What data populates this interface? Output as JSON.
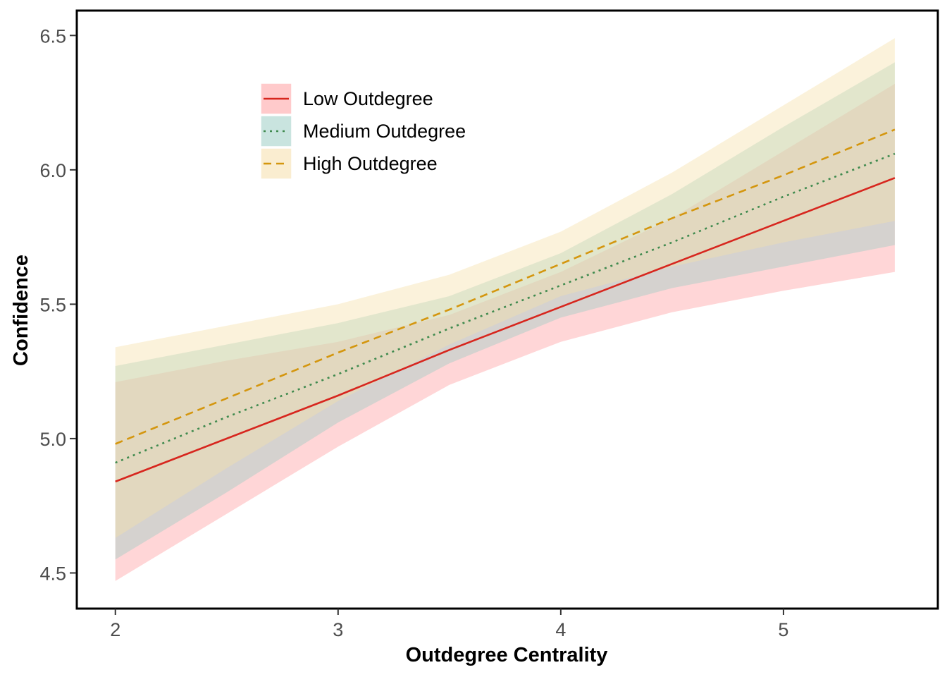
{
  "chart_data": {
    "type": "line",
    "title": "",
    "xlabel": "Outdegree Centrality",
    "ylabel": "Confidence",
    "xlim": [
      1.83,
      5.69
    ],
    "ylim": [
      4.37,
      6.59
    ],
    "x_ticks": [
      2,
      3,
      4,
      5
    ],
    "x_tick_labels": [
      "2",
      "3",
      "4",
      "5"
    ],
    "y_ticks": [
      4.5,
      5.0,
      5.5,
      6.0,
      6.5
    ],
    "y_tick_labels": [
      "4.5",
      "5.0",
      "5.5",
      "6.0",
      "6.5"
    ],
    "grid": false,
    "legend_position": "top-left",
    "series": [
      {
        "name": "Low Outdegree",
        "line_color": "#d7261e",
        "band_color": "#ff9ea0",
        "line_style": "solid",
        "x": [
          2,
          2.5,
          3,
          3.5,
          4,
          4.5,
          5,
          5.5
        ],
        "y": [
          4.84,
          5.0,
          5.16,
          5.33,
          5.49,
          5.65,
          5.81,
          5.97
        ],
        "lower": [
          4.47,
          4.72,
          4.97,
          5.2,
          5.36,
          5.47,
          5.55,
          5.62
        ],
        "upper": [
          5.21,
          5.29,
          5.36,
          5.46,
          5.62,
          5.82,
          6.07,
          6.32
        ]
      },
      {
        "name": "Medium Outdegree",
        "line_color": "#3f8a4e",
        "band_color": "#9ccdc4",
        "line_style": "dotted",
        "x": [
          2,
          2.5,
          3,
          3.5,
          4,
          4.5,
          5,
          5.5
        ],
        "y": [
          4.91,
          5.08,
          5.24,
          5.41,
          5.57,
          5.73,
          5.9,
          6.06
        ],
        "lower": [
          4.55,
          4.8,
          5.06,
          5.28,
          5.45,
          5.56,
          5.64,
          5.72
        ],
        "upper": [
          5.27,
          5.35,
          5.43,
          5.53,
          5.69,
          5.91,
          6.16,
          6.4
        ]
      },
      {
        "name": "High Outdegree",
        "line_color": "#d4960e",
        "band_color": "#f5dfaa",
        "line_style": "dashed",
        "x": [
          2,
          2.5,
          3,
          3.5,
          4,
          4.5,
          5,
          5.5
        ],
        "y": [
          4.98,
          5.15,
          5.32,
          5.48,
          5.65,
          5.82,
          5.98,
          6.15
        ],
        "lower": [
          4.63,
          4.89,
          5.14,
          5.35,
          5.53,
          5.64,
          5.73,
          5.81
        ],
        "upper": [
          5.34,
          5.42,
          5.5,
          5.61,
          5.77,
          5.99,
          6.24,
          6.49
        ]
      }
    ]
  }
}
